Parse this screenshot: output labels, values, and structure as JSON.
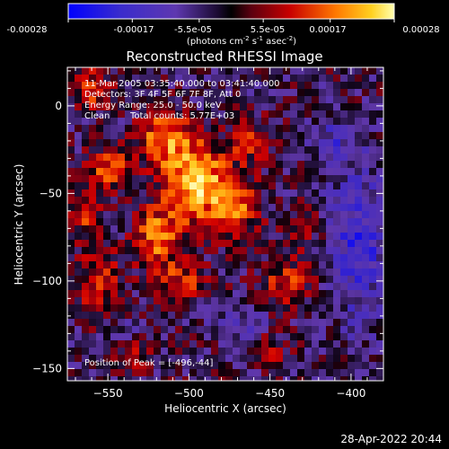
{
  "colorbar": {
    "ticks": [
      "-0.00028",
      "-0.00017",
      "-5.5e-05",
      "5.5e-05",
      "0.00017",
      "0.00028"
    ],
    "unit_main": "(photons cm",
    "unit_exp1": "-2",
    "unit_s": " s",
    "unit_exp2": "-1",
    "unit_asec": " asec",
    "unit_exp3": "-2",
    "unit_close": ")",
    "range": [
      -0.00028,
      0.00028
    ]
  },
  "annotations": {
    "time": "11-Mar-2005 03:35:40.000 to 03:41:40.000",
    "detectors": "Detectors: 3F 4F 5F 6F 7F 8F, Att 0",
    "energy": "Energy Range: 25.0 - 50.0 keV",
    "clean_label": "Clean",
    "counts": "Total counts: 5.77E+03",
    "peak": "Position of Peak = [-496,-44]"
  },
  "footer": {
    "timestamp": "28-Apr-2022 20:44"
  },
  "chart_data": {
    "type": "heatmap",
    "title": "Reconstructed RHESSI Image",
    "xlabel": "Heliocentric X (arcsec)",
    "ylabel": "Heliocentric Y (arcsec)",
    "xlim": [
      -575,
      -380
    ],
    "ylim": [
      -157,
      22
    ],
    "x_ticks": [
      -550,
      -500,
      -450,
      -400
    ],
    "y_ticks": [
      0,
      -50,
      -100,
      -150
    ],
    "x_tick_labels": [
      "−550",
      "−500",
      "−450",
      "−400"
    ],
    "y_tick_labels": [
      "0",
      "−50",
      "−100",
      "−150"
    ],
    "grid": false,
    "colormap": "rhessi-hot",
    "peak": [
      -496,
      -44
    ],
    "blobs": [
      {
        "x": -496,
        "y": -44,
        "sx": 14,
        "sy": 16,
        "a": 1.0
      },
      {
        "x": -515,
        "y": -18,
        "sx": 11,
        "sy": 10,
        "a": 0.75
      },
      {
        "x": -548,
        "y": -35,
        "sx": 10,
        "sy": 9,
        "a": 0.6
      },
      {
        "x": -520,
        "y": -75,
        "sx": 10,
        "sy": 12,
        "a": 0.7
      },
      {
        "x": -470,
        "y": -58,
        "sx": 10,
        "sy": 12,
        "a": 0.6
      },
      {
        "x": -462,
        "y": -20,
        "sx": 9,
        "sy": 9,
        "a": 0.45
      },
      {
        "x": -555,
        "y": -100,
        "sx": 9,
        "sy": 14,
        "a": 0.55
      },
      {
        "x": -565,
        "y": -60,
        "sx": 7,
        "sy": 10,
        "a": 0.5
      },
      {
        "x": -505,
        "y": -100,
        "sx": 12,
        "sy": 8,
        "a": 0.5
      },
      {
        "x": -440,
        "y": -100,
        "sx": 12,
        "sy": 10,
        "a": 0.45
      },
      {
        "x": -430,
        "y": -70,
        "sx": 8,
        "sy": 8,
        "a": 0.3
      },
      {
        "x": -560,
        "y": 10,
        "sx": 8,
        "sy": 8,
        "a": 0.55
      },
      {
        "x": -535,
        "y": -140,
        "sx": 10,
        "sy": 8,
        "a": 0.35
      },
      {
        "x": -450,
        "y": -140,
        "sx": 8,
        "sy": 7,
        "a": 0.3
      },
      {
        "x": -395,
        "y": -80,
        "sx": 12,
        "sy": 30,
        "a": -0.55
      },
      {
        "x": -410,
        "y": -20,
        "sx": 10,
        "sy": 10,
        "a": -0.35
      },
      {
        "x": -470,
        "y": -125,
        "sx": 10,
        "sy": 6,
        "a": -0.35
      },
      {
        "x": -540,
        "y": -130,
        "sx": 8,
        "sy": 6,
        "a": -0.3
      }
    ]
  }
}
